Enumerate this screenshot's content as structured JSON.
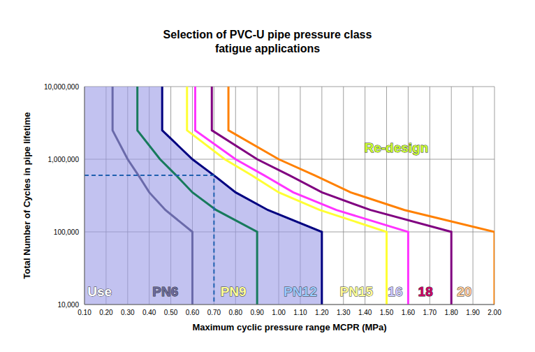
{
  "chart_data": {
    "type": "line",
    "title": "Selection of PVC-U pipe pressure class\nfatigue applications",
    "x_label": "Maximum cyclic pressure range MCPR (MPa)",
    "y_label": "Total Number of Cycles in pipe lifetime",
    "log": "y",
    "grid": true,
    "xlim": [
      0.1,
      2.0
    ],
    "xticks": [
      {
        "value": 0.1,
        "label": "0.10"
      },
      {
        "value": 0.2,
        "label": "0.20"
      },
      {
        "value": 0.3,
        "label": "0.30"
      },
      {
        "value": 0.4,
        "label": "0.40"
      },
      {
        "value": 0.5,
        "label": "0.50"
      },
      {
        "value": 0.6,
        "label": "0.60"
      },
      {
        "value": 0.7,
        "label": "0.70"
      },
      {
        "value": 0.8,
        "label": "0.80"
      },
      {
        "value": 0.9,
        "label": "0.90"
      },
      {
        "value": 1.0,
        "label": "1.00"
      },
      {
        "value": 1.1,
        "label": "1.10"
      },
      {
        "value": 1.2,
        "label": "1.20"
      },
      {
        "value": 1.3,
        "label": "1.30"
      },
      {
        "value": 1.4,
        "label": "1.40"
      },
      {
        "value": 1.5,
        "label": "1.50"
      },
      {
        "value": 1.6,
        "label": "1.60"
      },
      {
        "value": 1.7,
        "label": "1.70"
      },
      {
        "value": 1.8,
        "label": "1.80"
      },
      {
        "value": 1.9,
        "label": "1.90"
      },
      {
        "value": 2.0,
        "label": "2.00"
      }
    ],
    "ylim": [
      10000,
      10000000
    ],
    "yticks": [
      {
        "value": 10000,
        "label": "10,000"
      },
      {
        "value": 100000,
        "label": "100,000"
      },
      {
        "value": 1000000,
        "label": "1,000,000"
      },
      {
        "value": 10000000,
        "label": "10,000,000"
      }
    ],
    "series": [
      {
        "type": "area",
        "color": "#9999e6",
        "x": [
          0.1,
          0.46,
          0.46,
          0.6,
          0.7,
          0.8,
          0.95,
          1.2,
          1.2
        ],
        "values": [
          10000000,
          10000000,
          2500000,
          1000000,
          600000,
          350000,
          200000,
          100000,
          10000
        ]
      },
      {
        "name": "PN6",
        "color": "#6a6aaa",
        "x": [
          0.23,
          0.23,
          0.3,
          0.35,
          0.4,
          0.475,
          0.6,
          0.6
        ],
        "values": [
          10000000,
          2500000,
          1000000,
          600000,
          350000,
          200000,
          100000,
          10000
        ]
      },
      {
        "name": "PN9",
        "color": "#177a5c",
        "x": [
          0.345,
          0.345,
          0.45,
          0.525,
          0.6,
          0.71,
          0.9,
          0.9
        ],
        "values": [
          10000000,
          2500000,
          1000000,
          600000,
          350000,
          200000,
          100000,
          10000
        ]
      },
      {
        "name": "PN12",
        "color": "#000080",
        "x": [
          0.46,
          0.46,
          0.6,
          0.7,
          0.8,
          0.95,
          1.2,
          1.2
        ],
        "values": [
          10000000,
          2500000,
          1000000,
          600000,
          350000,
          200000,
          100000,
          10000
        ]
      },
      {
        "name": "PN15",
        "color": "#ffff33",
        "x": [
          0.575,
          0.575,
          0.75,
          0.875,
          1.0,
          1.19,
          1.5,
          1.5
        ],
        "values": [
          10000000,
          2500000,
          1000000,
          600000,
          350000,
          200000,
          100000,
          10000
        ]
      },
      {
        "name": "16",
        "color": "#ff33ff",
        "x": [
          0.613,
          0.613,
          0.8,
          0.933,
          1.067,
          1.267,
          1.6,
          1.6
        ],
        "values": [
          10000000,
          2500000,
          1000000,
          600000,
          350000,
          200000,
          100000,
          10000
        ]
      },
      {
        "name": "18",
        "color": "#800080",
        "x": [
          0.69,
          0.69,
          0.9,
          1.05,
          1.2,
          1.425,
          1.8,
          1.8
        ],
        "values": [
          10000000,
          2500000,
          1000000,
          600000,
          350000,
          200000,
          100000,
          10000
        ]
      },
      {
        "name": "20",
        "color": "#ff8000",
        "x": [
          0.767,
          0.767,
          1.0,
          1.167,
          1.333,
          1.583,
          2.0,
          2.0
        ],
        "values": [
          10000000,
          2500000,
          1000000,
          600000,
          350000,
          200000,
          100000,
          10000
        ]
      },
      {
        "type": "line",
        "line_style": "dashed",
        "color": "#2060b0",
        "x": [
          0.1,
          0.7,
          0.7
        ],
        "values": [
          600000,
          600000,
          10000
        ]
      }
    ],
    "annotations": [
      {
        "text": "Use",
        "x": 0.17,
        "y": 13000,
        "color": "#ffffff"
      },
      {
        "text": "PN6",
        "x": 0.475,
        "y": 13000,
        "color": "#6a6a9a"
      },
      {
        "text": "PN9",
        "x": 0.79,
        "y": 13000,
        "color": "#ffff99"
      },
      {
        "text": "PN12",
        "x": 1.1,
        "y": 13000,
        "color": "#99ccff"
      },
      {
        "text": "PN15",
        "x": 1.36,
        "y": 13000,
        "color": "#ffff99"
      },
      {
        "text": "16",
        "x": 1.54,
        "y": 13000,
        "color": "#ccccff"
      },
      {
        "text": "18",
        "x": 1.68,
        "y": 13000,
        "color": "#cc0066"
      },
      {
        "text": "20",
        "x": 1.86,
        "y": 13000,
        "color": "#ffcc99"
      },
      {
        "text": "Re-design",
        "x": 1.545,
        "y": 1250000,
        "color": "#ccff33"
      }
    ]
  }
}
